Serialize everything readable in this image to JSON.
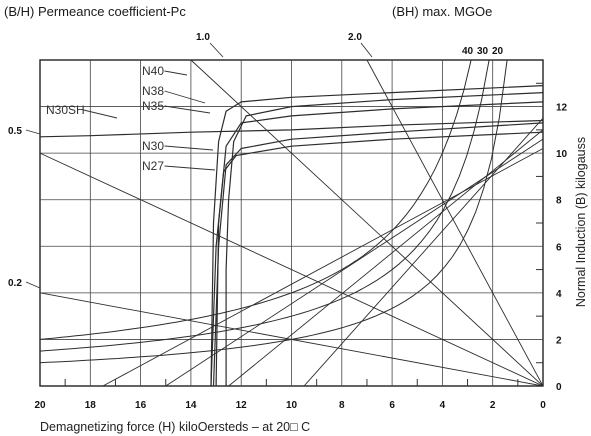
{
  "header": {
    "left_title": "(B/H) Permeance coefficient-Pc",
    "right_title": "(BH) max. MGOe"
  },
  "chart_data": {
    "type": "line",
    "xlabel": "Demagnetizing force (H) kiloOersteds – at 20□ C",
    "ylabel": "Normal Induction (B) kilogauss",
    "xlim": [
      20,
      0
    ],
    "ylim": [
      0,
      14
    ],
    "x_ticks": [
      "20",
      "18",
      "16",
      "14",
      "12",
      "10",
      "8",
      "6",
      "4",
      "2",
      "0"
    ],
    "y_ticks": [
      "0",
      "2",
      "4",
      "6",
      "8",
      "10",
      "12"
    ],
    "grid": true,
    "permeance_labels": [
      "0.5",
      "0.2",
      "1.0",
      "2.0"
    ],
    "bhmax_labels": [
      "40",
      "30",
      "20"
    ],
    "series": [
      {
        "name": "N40",
        "points": [
          [
            0,
            12.9
          ],
          [
            6,
            12.6
          ],
          [
            10,
            12.4
          ],
          [
            12,
            12.2
          ],
          [
            12.6,
            11.8
          ],
          [
            12.9,
            10.5
          ],
          [
            13.1,
            7
          ],
          [
            13.2,
            0
          ]
        ]
      },
      {
        "name": "N38",
        "points": [
          [
            0,
            12.6
          ],
          [
            6,
            12.3
          ],
          [
            10,
            12.0
          ],
          [
            11.8,
            11.6
          ],
          [
            12.3,
            10.5
          ],
          [
            12.5,
            8
          ],
          [
            12.6,
            5
          ],
          [
            12.6,
            0
          ]
        ]
      },
      {
        "name": "N35",
        "points": [
          [
            0,
            12.2
          ],
          [
            6,
            11.9
          ],
          [
            10,
            11.6
          ],
          [
            12,
            11.3
          ],
          [
            12.6,
            10.3
          ],
          [
            12.9,
            7
          ],
          [
            13.0,
            0
          ]
        ]
      },
      {
        "name": "N30",
        "points": [
          [
            0,
            11.3
          ],
          [
            6,
            10.9
          ],
          [
            10,
            10.6
          ],
          [
            12,
            10.2
          ],
          [
            12.6,
            9.5
          ],
          [
            12.9,
            6
          ],
          [
            13.1,
            0
          ]
        ]
      },
      {
        "name": "N27",
        "points": [
          [
            0,
            10.9
          ],
          [
            6,
            10.6
          ],
          [
            10,
            10.3
          ],
          [
            12.2,
            9.9
          ],
          [
            12.7,
            9.2
          ],
          [
            13.0,
            6
          ],
          [
            13.2,
            0
          ]
        ]
      },
      {
        "name": "N30SH",
        "points": [
          [
            0,
            11.4
          ],
          [
            6,
            11.2
          ],
          [
            10,
            11.0
          ],
          [
            14,
            10.9
          ],
          [
            18,
            10.75
          ],
          [
            20,
            10.7
          ]
        ]
      }
    ]
  }
}
